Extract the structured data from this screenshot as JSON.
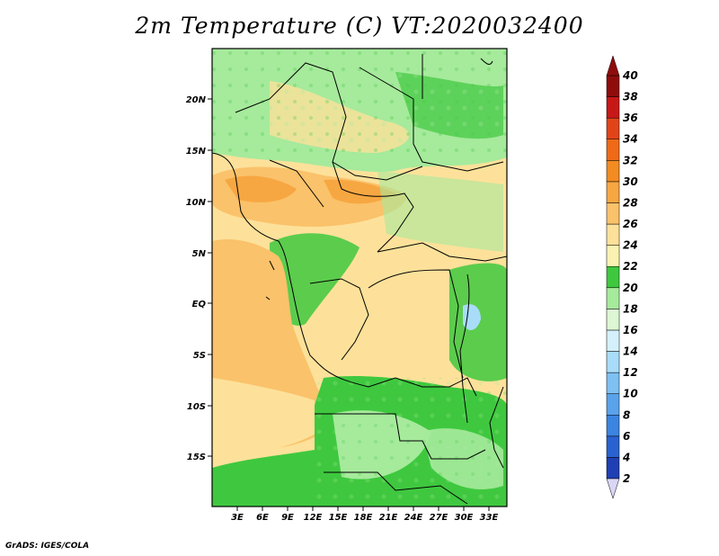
{
  "title": "2m Temperature (C) VT:2020032400",
  "credit": "GrADS: IGES/COLA",
  "map": {
    "lon_range": [
      0,
      35
    ],
    "lat_range": [
      -20,
      25
    ],
    "x_ticks": [
      "3E",
      "6E",
      "9E",
      "12E",
      "15E",
      "18E",
      "21E",
      "24E",
      "27E",
      "30E",
      "33E"
    ],
    "y_ticks": [
      "20N",
      "15N",
      "10N",
      "5N",
      "EQ",
      "5S",
      "10S",
      "15S"
    ]
  },
  "colorbar": {
    "labels": [
      "2",
      "4",
      "6",
      "8",
      "10",
      "12",
      "14",
      "16",
      "18",
      "20",
      "22",
      "24",
      "26",
      "28",
      "30",
      "32",
      "34",
      "36",
      "38",
      "40"
    ],
    "colors": [
      "#16166e",
      "#1f3fb4",
      "#2a62d0",
      "#3b84e0",
      "#5aa2ea",
      "#7ec0f2",
      "#a8dcf8",
      "#d4f0fb",
      "#ddf6d4",
      "#a6ea9c",
      "#3fc83f",
      "#f9f2b2",
      "#fde19a",
      "#fac26a",
      "#f7a742",
      "#f28b22",
      "#ef6a18",
      "#e2441a",
      "#c71818",
      "#8f0c0c"
    ],
    "under_color": "#dad6f6",
    "over_color": "#8f0c0c"
  }
}
